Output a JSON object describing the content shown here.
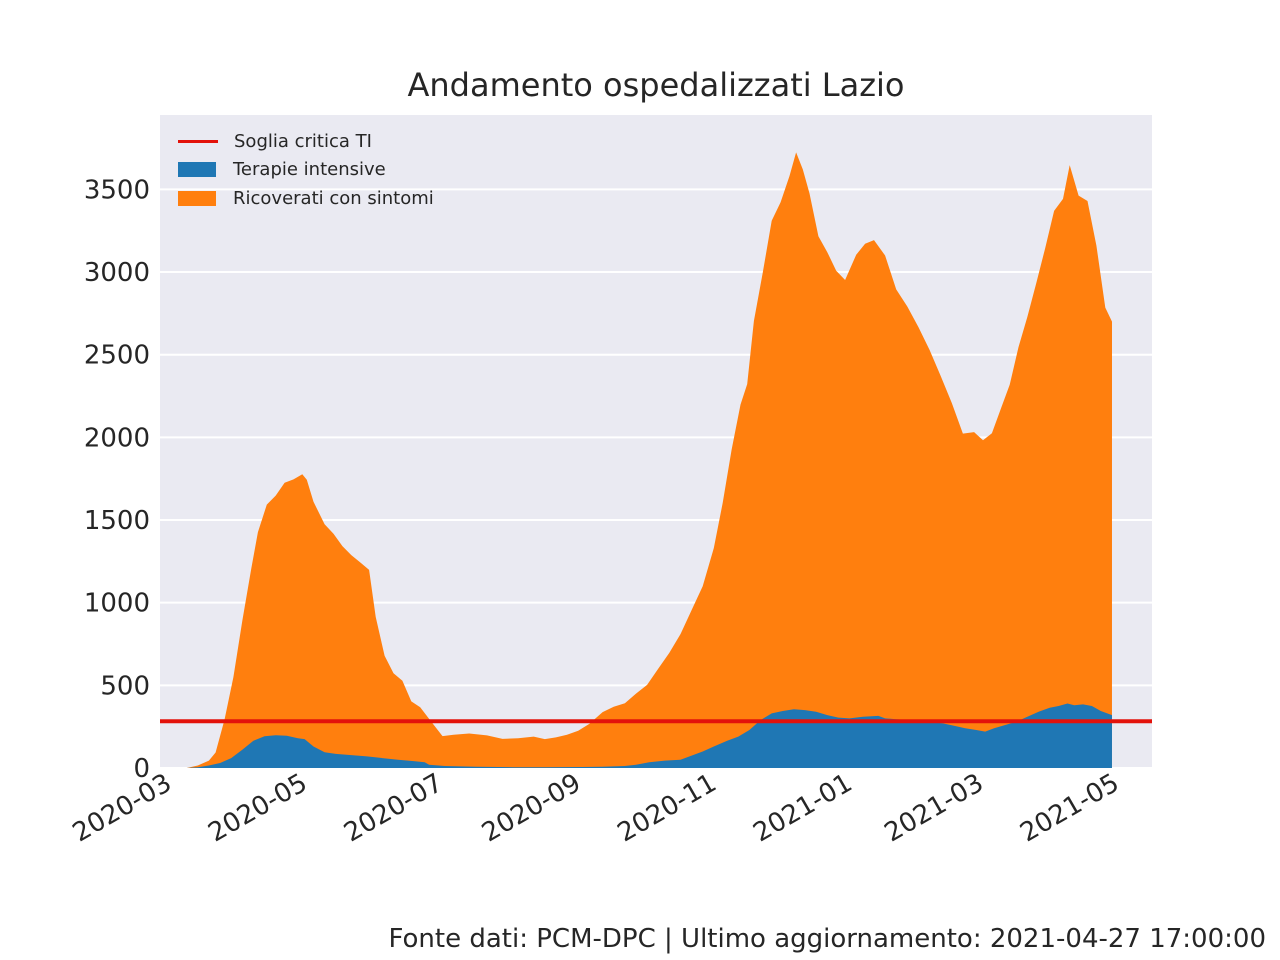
{
  "chart_data": {
    "type": "area",
    "title": "Andamento ospedalizzati Lazio",
    "xlabel": "",
    "ylabel": "",
    "ylim": [
      0,
      3950
    ],
    "xlim": [
      "2020-02-24",
      "2021-05-15"
    ],
    "yticks": [
      0,
      500,
      1000,
      1500,
      2000,
      2500,
      3000,
      3500
    ],
    "xticks": [
      "2020-03",
      "2020-05",
      "2020-07",
      "2020-09",
      "2020-11",
      "2021-01",
      "2021-03",
      "2021-05"
    ],
    "grid": true,
    "legend_position": "top-left",
    "threshold": {
      "name": "Soglia critica TI",
      "value": 283,
      "color": "#e3120b"
    },
    "series": [
      {
        "name": "Terapie intensive",
        "color": "#1f77b4",
        "points": [
          [
            "2020-03-07",
            0
          ],
          [
            "2020-03-12",
            5
          ],
          [
            "2020-03-17",
            15
          ],
          [
            "2020-03-22",
            30
          ],
          [
            "2020-03-27",
            60
          ],
          [
            "2020-04-01",
            110
          ],
          [
            "2020-04-06",
            165
          ],
          [
            "2020-04-11",
            192
          ],
          [
            "2020-04-16",
            198
          ],
          [
            "2020-04-21",
            195
          ],
          [
            "2020-04-26",
            180
          ],
          [
            "2020-04-29",
            175
          ],
          [
            "2020-05-03",
            130
          ],
          [
            "2020-05-08",
            95
          ],
          [
            "2020-05-13",
            85
          ],
          [
            "2020-05-20",
            78
          ],
          [
            "2020-05-27",
            70
          ],
          [
            "2020-06-03",
            60
          ],
          [
            "2020-06-10",
            50
          ],
          [
            "2020-06-17",
            42
          ],
          [
            "2020-06-22",
            35
          ],
          [
            "2020-06-24",
            20
          ],
          [
            "2020-07-01",
            12
          ],
          [
            "2020-07-15",
            8
          ],
          [
            "2020-08-01",
            5
          ],
          [
            "2020-08-15",
            5
          ],
          [
            "2020-09-01",
            6
          ],
          [
            "2020-09-10",
            8
          ],
          [
            "2020-09-20",
            12
          ],
          [
            "2020-09-25",
            20
          ],
          [
            "2020-10-01",
            35
          ],
          [
            "2020-10-08",
            45
          ],
          [
            "2020-10-15",
            50
          ],
          [
            "2020-10-20",
            75
          ],
          [
            "2020-10-25",
            100
          ],
          [
            "2020-10-30",
            130
          ],
          [
            "2020-11-05",
            165
          ],
          [
            "2020-11-10",
            190
          ],
          [
            "2020-11-15",
            230
          ],
          [
            "2020-11-20",
            290
          ],
          [
            "2020-11-25",
            330
          ],
          [
            "2020-11-30",
            345
          ],
          [
            "2020-12-05",
            355
          ],
          [
            "2020-12-10",
            350
          ],
          [
            "2020-12-15",
            340
          ],
          [
            "2020-12-20",
            320
          ],
          [
            "2020-12-25",
            305
          ],
          [
            "2020-12-30",
            300
          ],
          [
            "2021-01-05",
            310
          ],
          [
            "2021-01-12",
            315
          ],
          [
            "2021-01-15",
            300
          ],
          [
            "2021-01-20",
            295
          ],
          [
            "2021-01-27",
            290
          ],
          [
            "2021-02-03",
            280
          ],
          [
            "2021-02-10",
            270
          ],
          [
            "2021-02-15",
            255
          ],
          [
            "2021-02-20",
            240
          ],
          [
            "2021-02-25",
            230
          ],
          [
            "2021-03-01",
            220
          ],
          [
            "2021-03-05",
            240
          ],
          [
            "2021-03-10",
            260
          ],
          [
            "2021-03-15",
            280
          ],
          [
            "2021-03-20",
            310
          ],
          [
            "2021-03-25",
            340
          ],
          [
            "2021-03-30",
            365
          ],
          [
            "2021-04-03",
            375
          ],
          [
            "2021-04-07",
            390
          ],
          [
            "2021-04-10",
            380
          ],
          [
            "2021-04-14",
            385
          ],
          [
            "2021-04-18",
            375
          ],
          [
            "2021-04-22",
            345
          ],
          [
            "2021-04-27",
            320
          ]
        ]
      },
      {
        "name": "Ricoverati con sintomi",
        "color": "#ff7f0e",
        "points": [
          [
            "2020-03-07",
            0
          ],
          [
            "2020-03-12",
            10
          ],
          [
            "2020-03-17",
            30
          ],
          [
            "2020-03-20",
            70
          ],
          [
            "2020-03-24",
            250
          ],
          [
            "2020-03-28",
            480
          ],
          [
            "2020-04-01",
            780
          ],
          [
            "2020-04-05",
            1050
          ],
          [
            "2020-04-08",
            1250
          ],
          [
            "2020-04-12",
            1400
          ],
          [
            "2020-04-16",
            1450
          ],
          [
            "2020-04-20",
            1530
          ],
          [
            "2020-04-24",
            1560
          ],
          [
            "2020-04-28",
            1600
          ],
          [
            "2020-04-30",
            1580
          ],
          [
            "2020-05-03",
            1480
          ],
          [
            "2020-05-08",
            1380
          ],
          [
            "2020-05-12",
            1330
          ],
          [
            "2020-05-16",
            1260
          ],
          [
            "2020-05-20",
            1210
          ],
          [
            "2020-05-24",
            1170
          ],
          [
            "2020-05-28",
            1130
          ],
          [
            "2020-05-31",
            850
          ],
          [
            "2020-06-04",
            620
          ],
          [
            "2020-06-08",
            520
          ],
          [
            "2020-06-12",
            480
          ],
          [
            "2020-06-16",
            360
          ],
          [
            "2020-06-20",
            330
          ],
          [
            "2020-06-25",
            260
          ],
          [
            "2020-06-30",
            180
          ],
          [
            "2020-07-05",
            190
          ],
          [
            "2020-07-12",
            200
          ],
          [
            "2020-07-20",
            190
          ],
          [
            "2020-07-27",
            170
          ],
          [
            "2020-08-03",
            175
          ],
          [
            "2020-08-10",
            185
          ],
          [
            "2020-08-15",
            170
          ],
          [
            "2020-08-20",
            180
          ],
          [
            "2020-08-25",
            195
          ],
          [
            "2020-08-30",
            220
          ],
          [
            "2020-09-04",
            260
          ],
          [
            "2020-09-10",
            330
          ],
          [
            "2020-09-15",
            360
          ],
          [
            "2020-09-20",
            380
          ],
          [
            "2020-09-25",
            430
          ],
          [
            "2020-09-30",
            470
          ],
          [
            "2020-10-05",
            560
          ],
          [
            "2020-10-10",
            650
          ],
          [
            "2020-10-15",
            760
          ],
          [
            "2020-10-20",
            880
          ],
          [
            "2020-10-25",
            1000
          ],
          [
            "2020-10-30",
            1200
          ],
          [
            "2020-11-03",
            1450
          ],
          [
            "2020-11-07",
            1750
          ],
          [
            "2020-11-11",
            2000
          ],
          [
            "2020-11-14",
            2100
          ],
          [
            "2020-11-17",
            2450
          ],
          [
            "2020-11-21",
            2700
          ],
          [
            "2020-11-25",
            2980
          ],
          [
            "2020-11-29",
            3080
          ],
          [
            "2020-12-03",
            3230
          ],
          [
            "2020-12-06",
            3370
          ],
          [
            "2020-12-09",
            3270
          ],
          [
            "2020-12-12",
            3130
          ],
          [
            "2020-12-16",
            2880
          ],
          [
            "2020-12-20",
            2800
          ],
          [
            "2020-12-24",
            2700
          ],
          [
            "2020-12-28",
            2650
          ],
          [
            "2021-01-02",
            2800
          ],
          [
            "2021-01-06",
            2860
          ],
          [
            "2021-01-10",
            2880
          ],
          [
            "2021-01-15",
            2800
          ],
          [
            "2021-01-20",
            2600
          ],
          [
            "2021-01-25",
            2500
          ],
          [
            "2021-01-30",
            2380
          ],
          [
            "2021-02-04",
            2250
          ],
          [
            "2021-02-09",
            2100
          ],
          [
            "2021-02-14",
            1950
          ],
          [
            "2021-02-19",
            1780
          ],
          [
            "2021-02-24",
            1800
          ],
          [
            "2021-02-28",
            1760
          ],
          [
            "2021-03-04",
            1790
          ],
          [
            "2021-03-08",
            1920
          ],
          [
            "2021-03-12",
            2050
          ],
          [
            "2021-03-16",
            2260
          ],
          [
            "2021-03-20",
            2420
          ],
          [
            "2021-03-24",
            2600
          ],
          [
            "2021-03-28",
            2790
          ],
          [
            "2021-04-01",
            3000
          ],
          [
            "2021-04-05",
            3060
          ],
          [
            "2021-04-08",
            3260
          ],
          [
            "2021-04-12",
            3080
          ],
          [
            "2021-04-16",
            3050
          ],
          [
            "2021-04-20",
            2800
          ],
          [
            "2021-04-24",
            2450
          ],
          [
            "2021-04-27",
            2380
          ]
        ]
      }
    ]
  },
  "footer": "Fonte dati: PCM-DPC | Ultimo aggiornamento: 2021-04-27 17:00:00"
}
